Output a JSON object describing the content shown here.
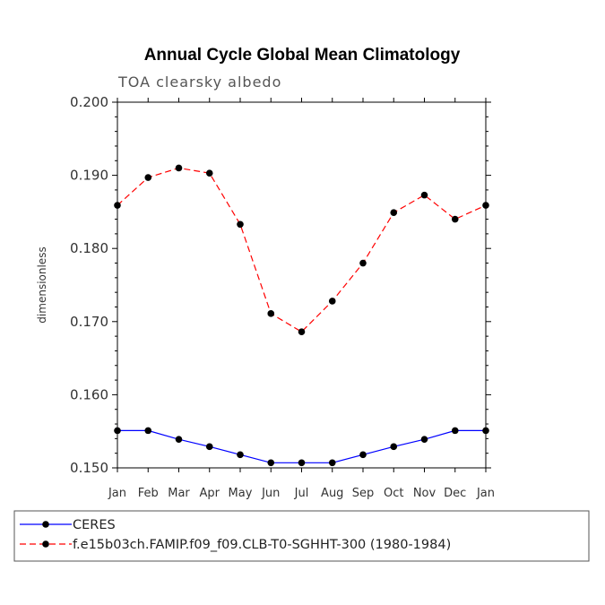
{
  "chart_data": {
    "type": "line",
    "title": "Annual Cycle Global Mean Climatology",
    "subtitle": "TOA clearsky albedo",
    "xlabel": "",
    "ylabel": "dimensionless",
    "categories": [
      "Jan",
      "Feb",
      "Mar",
      "Apr",
      "May",
      "Jun",
      "Jul",
      "Aug",
      "Sep",
      "Oct",
      "Nov",
      "Dec",
      "Jan"
    ],
    "ylim": [
      0.15,
      0.2
    ],
    "yticks": [
      "0.150",
      "0.160",
      "0.170",
      "0.180",
      "0.190",
      "0.200"
    ],
    "ytick_values": [
      0.15,
      0.16,
      0.17,
      0.18,
      0.19,
      0.2
    ],
    "series": [
      {
        "name": "CERES",
        "color": "#0000ff",
        "dash": "solid",
        "values": [
          0.1551,
          0.1551,
          0.1539,
          0.1529,
          0.1518,
          0.1507,
          0.1507,
          0.1507,
          0.1518,
          0.1529,
          0.1539,
          0.1551,
          0.1551
        ]
      },
      {
        "name": "f.e15b03ch.FAMIP.f09_f09.CLB-T0-SGHHT-300 (1980-1984)",
        "color": "#ff0000",
        "dash": "dashed",
        "values": [
          0.1859,
          0.1897,
          0.191,
          0.1903,
          0.1833,
          0.1711,
          0.1686,
          0.1728,
          0.178,
          0.1849,
          0.1873,
          0.184,
          0.1859
        ]
      }
    ]
  }
}
